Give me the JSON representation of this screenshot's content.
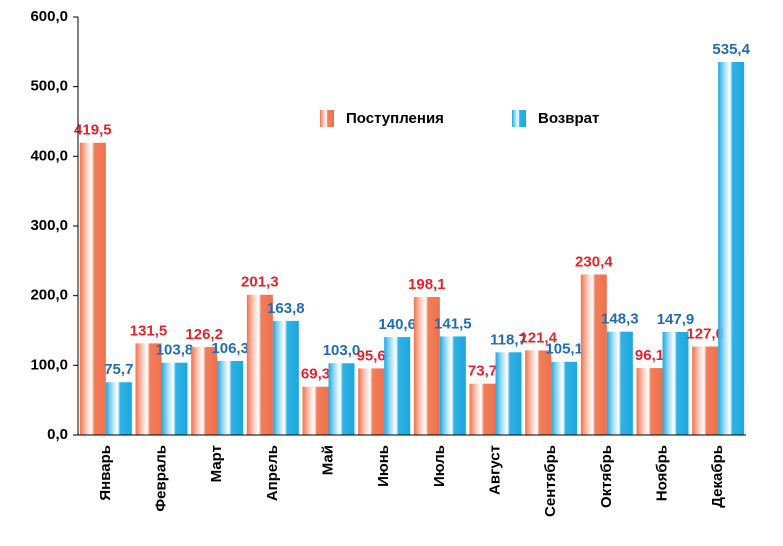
{
  "chart_data": {
    "type": "bar",
    "categories": [
      "Январь",
      "Февраль",
      "Март",
      "Апрель",
      "Май",
      "Июнь",
      "Июль",
      "Август",
      "Сентябрь",
      "Октябрь",
      "Ноябрь",
      "Декабрь"
    ],
    "series": [
      {
        "name": "Поступления",
        "color": "#f0704a",
        "label_color": "#e3242b",
        "values": [
          419.5,
          131.5,
          126.2,
          201.3,
          69.3,
          95.6,
          198.1,
          73.7,
          121.4,
          230.4,
          96.1,
          127.0
        ],
        "value_labels": [
          "419,5",
          "131,5",
          "126,2",
          "201,3",
          "69,3",
          "95,6",
          "198,1",
          "73,7",
          "121,4",
          "230,4",
          "96,1",
          "127,0"
        ]
      },
      {
        "name": "Возврат",
        "color": "#1aa8e0",
        "label_color": "#1f6db3",
        "values": [
          75.7,
          103.8,
          106.3,
          163.8,
          103.0,
          140.6,
          141.5,
          118.7,
          105.1,
          148.3,
          147.9,
          535.4
        ],
        "value_labels": [
          "75,7",
          "103,8",
          "106,3",
          "163,8",
          "103,0",
          "140,6",
          "141,5",
          "118,7",
          "105,1",
          "148,3",
          "147,9",
          "535,4"
        ]
      }
    ],
    "ylim": [
      0,
      600
    ],
    "yticks": [
      {
        "value": 0,
        "label": "0,0"
      },
      {
        "value": 100,
        "label": "100,0"
      },
      {
        "value": 200,
        "label": "200,0"
      },
      {
        "value": 300,
        "label": "300,0"
      },
      {
        "value": 400,
        "label": "400,0"
      },
      {
        "value": 500,
        "label": "500,0"
      },
      {
        "value": 600,
        "label": "600,0"
      }
    ],
    "legend": "top-right"
  }
}
